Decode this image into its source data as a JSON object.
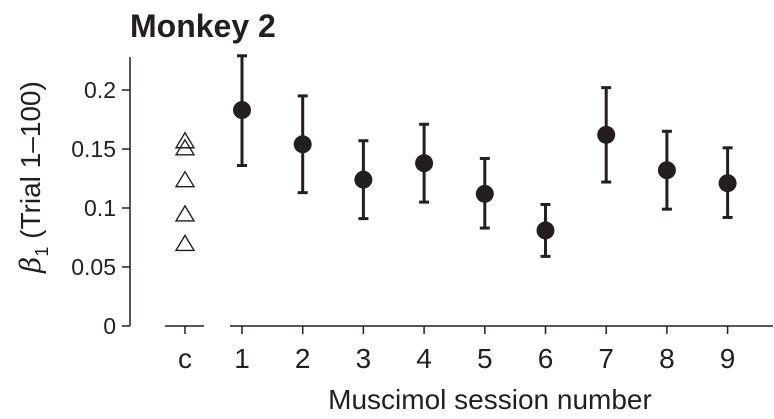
{
  "chart_data": {
    "type": "scatter",
    "title": "Monkey 2",
    "xlabel": "Muscimol session number",
    "ylabel": "(Trial 1–100)",
    "ylabel_symbol": "β",
    "ylabel_subscript": "1",
    "ylim": [
      0,
      0.2
    ],
    "yticks": [
      0,
      0.05,
      0.1,
      0.15,
      0.2
    ],
    "ytick_labels": [
      "0",
      "0.05",
      "0.1",
      "0.15",
      "0.2"
    ],
    "control": {
      "label": "c",
      "marker": "open-triangle",
      "values": [
        0.157,
        0.151,
        0.124,
        0.095,
        0.07
      ]
    },
    "sessions": {
      "marker": "filled-circle",
      "x": [
        1,
        2,
        3,
        4,
        5,
        6,
        7,
        8,
        9
      ],
      "x_labels": [
        "1",
        "2",
        "3",
        "4",
        "5",
        "6",
        "7",
        "8",
        "9"
      ],
      "y": [
        0.183,
        0.154,
        0.124,
        0.138,
        0.112,
        0.081,
        0.162,
        0.132,
        0.121
      ],
      "err_low": [
        0.136,
        0.113,
        0.091,
        0.105,
        0.083,
        0.059,
        0.122,
        0.099,
        0.092
      ],
      "err_high": [
        0.229,
        0.195,
        0.157,
        0.171,
        0.142,
        0.103,
        0.202,
        0.165,
        0.151
      ]
    },
    "colors": {
      "ink": "#231f20"
    },
    "grid": false,
    "legend": "none"
  }
}
